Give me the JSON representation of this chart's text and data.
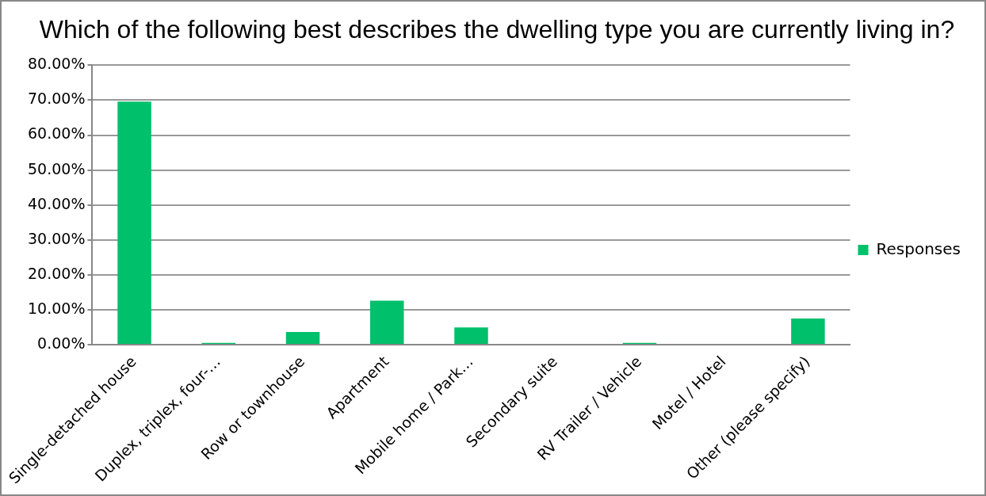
{
  "chart_data": {
    "type": "bar",
    "title": "Which of the following best describes the dwelling type you are currently living in?",
    "categories": [
      "Single-detached house",
      "Duplex, triplex, four-…",
      "Row or townhouse",
      "Apartment",
      "Mobile home / Park…",
      "Secondary suite",
      "RV Trailer / Vehicle",
      "Motel / Hotel",
      "Other (please specify)"
    ],
    "series": [
      {
        "name": "Responses",
        "color": "#00c06b",
        "values": [
          69.6,
          0.5,
          3.6,
          12.6,
          4.9,
          0,
          0.5,
          0,
          7.5
        ]
      }
    ],
    "ylim": [
      0,
      80
    ],
    "yticks": [
      {
        "value": 0,
        "label": "0.00%"
      },
      {
        "value": 10,
        "label": "10.00%"
      },
      {
        "value": 20,
        "label": "20.00%"
      },
      {
        "value": 30,
        "label": "30.00%"
      },
      {
        "value": 40,
        "label": "40.00%"
      },
      {
        "value": 50,
        "label": "50.00%"
      },
      {
        "value": 60,
        "label": "60.00%"
      },
      {
        "value": 70,
        "label": "70.00%"
      },
      {
        "value": 80,
        "label": "80.00%"
      }
    ],
    "grid": "y",
    "legend": "right"
  }
}
